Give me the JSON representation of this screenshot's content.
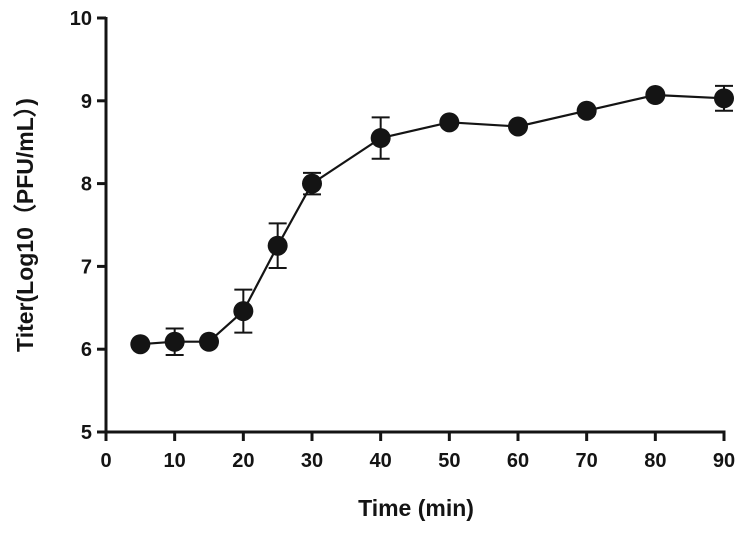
{
  "chart_data": {
    "type": "line",
    "title": "",
    "xlabel": "Time (min)",
    "ylabel": "Titer(Log10（PFU/mL）)",
    "xlim": [
      0,
      90
    ],
    "ylim": [
      5,
      10
    ],
    "xticks": [
      0,
      10,
      20,
      30,
      40,
      50,
      60,
      70,
      80,
      90
    ],
    "yticks": [
      5,
      6,
      7,
      8,
      9,
      10
    ],
    "grid": false,
    "legend": "none",
    "series": [
      {
        "name": "Titer",
        "color": "#141414",
        "x": [
          5,
          10,
          15,
          20,
          25,
          30,
          40,
          50,
          60,
          70,
          80,
          90
        ],
        "y": [
          6.06,
          6.09,
          6.09,
          6.46,
          7.25,
          8.0,
          8.55,
          8.74,
          8.69,
          8.88,
          9.07,
          9.03
        ],
        "err": [
          0,
          0.16,
          0,
          0.26,
          0.27,
          0.13,
          0.25,
          0,
          0,
          0,
          0,
          0.15
        ]
      }
    ]
  }
}
